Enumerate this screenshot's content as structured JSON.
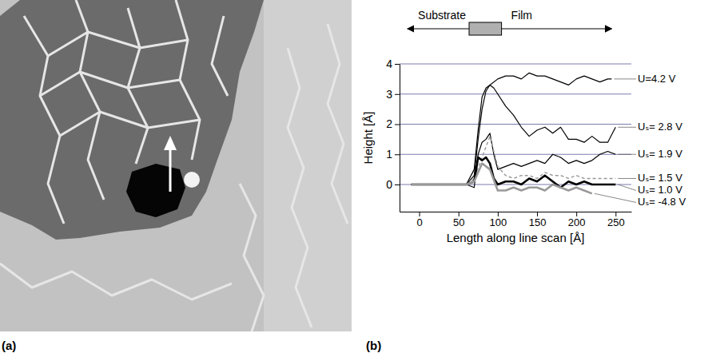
{
  "panel_labels": [
    "(a)",
    "(b)"
  ],
  "chart_data": {
    "type": "line",
    "xlabel": "Length along line scan [Å]",
    "ylabel": "Height [Å]",
    "annotations": {
      "substrate": "Substrate",
      "film": "Film"
    },
    "xlim": [
      -25,
      270
    ],
    "xticks": [
      0,
      50,
      100,
      150,
      200,
      250
    ],
    "ylim": [
      -0.9,
      4
    ],
    "yticks": [
      0,
      1,
      2,
      3,
      4
    ],
    "grid": true,
    "series": [
      {
        "name": "U=4.2 V",
        "color": "#000000",
        "line_style": "solid",
        "x": [
          -10,
          0,
          10,
          20,
          30,
          40,
          50,
          60,
          70,
          75,
          80,
          85,
          90,
          100,
          110,
          120,
          130,
          140,
          150,
          160,
          170,
          180,
          190,
          200,
          210,
          220,
          230,
          240,
          245
        ],
        "values": [
          0,
          0,
          0,
          0,
          0,
          0,
          0,
          0,
          0.5,
          1.8,
          2.9,
          3.2,
          3.3,
          3.5,
          3.6,
          3.6,
          3.5,
          3.7,
          3.6,
          3.6,
          3.5,
          3.4,
          3.3,
          3.5,
          3.6,
          3.5,
          3.4,
          3.5,
          3.5
        ]
      },
      {
        "name": "Uₛ= 2.8 V",
        "color": "#000000",
        "line_style": "solid",
        "x": [
          -10,
          0,
          10,
          20,
          30,
          40,
          50,
          60,
          70,
          75,
          80,
          85,
          90,
          95,
          100,
          110,
          120,
          130,
          140,
          150,
          160,
          170,
          180,
          190,
          200,
          210,
          220,
          230,
          240,
          250
        ],
        "values": [
          0,
          0,
          0,
          0,
          0,
          0,
          0,
          0,
          0.3,
          1.5,
          2.5,
          3.1,
          3.3,
          3.2,
          3.0,
          2.6,
          2.3,
          1.9,
          1.6,
          1.8,
          1.9,
          1.7,
          1.9,
          1.5,
          1.5,
          1.4,
          1.6,
          1.4,
          1.4,
          1.9
        ]
      },
      {
        "name": "Uₛ= 1.9 V",
        "color": "#000000",
        "line_style": "solid",
        "x": [
          -10,
          0,
          10,
          20,
          30,
          40,
          50,
          60,
          70,
          75,
          80,
          85,
          90,
          95,
          100,
          110,
          120,
          130,
          140,
          150,
          160,
          170,
          180,
          190,
          200,
          210,
          220,
          230,
          240,
          250
        ],
        "values": [
          0,
          0,
          0,
          0,
          0,
          0,
          0,
          0,
          -0.1,
          1.0,
          1.4,
          1.5,
          1.7,
          1.0,
          0.5,
          0.6,
          0.7,
          0.6,
          0.7,
          0.8,
          0.7,
          1.0,
          0.9,
          0.7,
          0.8,
          0.7,
          0.8,
          1.0,
          1.1,
          1.0
        ]
      },
      {
        "name": "Uₛ= 1.5 V",
        "color": "#999999",
        "line_style": "dashed",
        "x": [
          -10,
          0,
          10,
          20,
          30,
          40,
          50,
          60,
          70,
          80,
          90,
          100,
          110,
          120,
          130,
          140,
          150,
          160,
          170,
          180,
          190,
          200,
          210,
          220,
          230,
          240,
          250
        ],
        "values": [
          0,
          0,
          0,
          0,
          0,
          0,
          0,
          0,
          0.2,
          0.9,
          1.6,
          0.6,
          0.3,
          0.2,
          0.3,
          0.3,
          0.2,
          0.4,
          0.3,
          0.3,
          0.2,
          0.3,
          0.2,
          0.2,
          0.2,
          0.2,
          0.2
        ]
      },
      {
        "name": "Uₛ= 1.0 V",
        "color": "#000000",
        "line_style": "thick",
        "x": [
          -10,
          0,
          10,
          20,
          30,
          40,
          50,
          60,
          70,
          75,
          80,
          85,
          90,
          95,
          100,
          110,
          120,
          130,
          140,
          150,
          160,
          170,
          180,
          190,
          200,
          210,
          220,
          230,
          240,
          250
        ],
        "values": [
          0,
          0,
          0,
          0,
          0,
          0,
          0,
          0,
          0.1,
          0.9,
          0.8,
          0.9,
          0.7,
          0.2,
          0.0,
          0.1,
          0.1,
          0.0,
          0.2,
          0.1,
          0.3,
          0.1,
          -0.1,
          0.1,
          0.0,
          0.1,
          0.0,
          0.0,
          0.0,
          0.0
        ]
      },
      {
        "name": "Uₛ= -4.8 V",
        "color": "#999999",
        "line_style": "thick",
        "x": [
          -10,
          0,
          10,
          20,
          30,
          40,
          50,
          60,
          70,
          80,
          90,
          100,
          110,
          120,
          130,
          140,
          150,
          160,
          170,
          180,
          190,
          200,
          210,
          220
        ],
        "values": [
          0,
          0,
          0,
          0,
          0,
          0,
          0,
          0,
          0.1,
          0.7,
          0.5,
          -0.2,
          -0.2,
          -0.1,
          -0.2,
          -0.1,
          -0.1,
          -0.2,
          0.0,
          -0.1,
          -0.2,
          -0.1,
          -0.2,
          -0.3
        ]
      }
    ]
  }
}
